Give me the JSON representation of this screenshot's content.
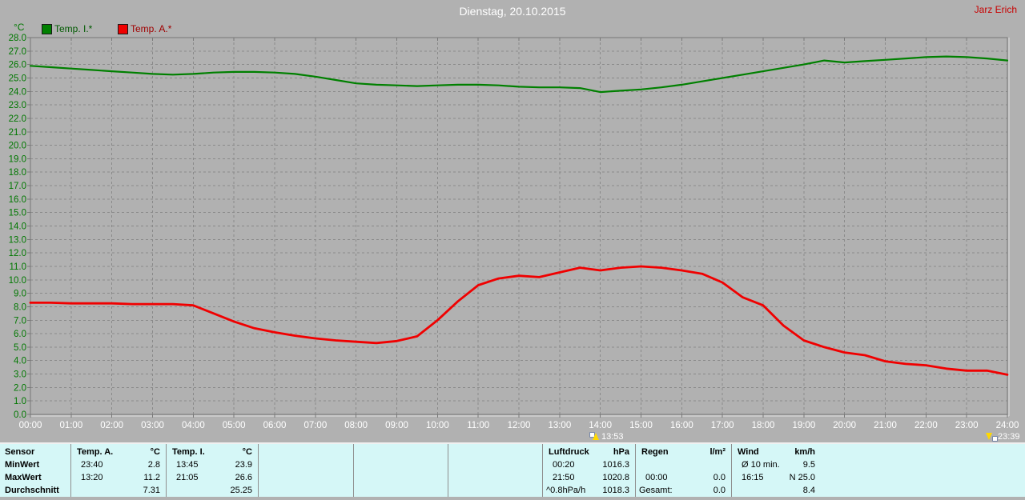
{
  "window": {
    "user": "Jarz Erich"
  },
  "chart_data": {
    "type": "line",
    "title": "Dienstag, 20.10.2015",
    "ylabel": "°C",
    "xlabel": "",
    "ylim": [
      0,
      28
    ],
    "ytick_step": 1,
    "xlim_hours": [
      0,
      24
    ],
    "grid": "dashed, hourly x 1.0°C",
    "legend_position": "top-left",
    "x_labels": [
      "00:00",
      "01:00",
      "02:00",
      "03:00",
      "04:00",
      "05:00",
      "06:00",
      "07:00",
      "08:00",
      "09:00",
      "10:00",
      "11:00",
      "12:00",
      "13:00",
      "14:00",
      "15:00",
      "16:00",
      "17:00",
      "18:00",
      "19:00",
      "20:00",
      "21:00",
      "22:00",
      "23:00",
      "24:00"
    ],
    "x_hours": [
      0,
      0.5,
      1,
      1.5,
      2,
      2.5,
      3,
      3.5,
      4,
      4.5,
      5,
      5.5,
      6,
      6.5,
      7,
      7.5,
      8,
      8.5,
      9,
      9.5,
      10,
      10.5,
      11,
      11.5,
      12,
      12.5,
      13,
      13.5,
      14,
      14.5,
      15,
      15.5,
      16,
      16.5,
      17,
      17.5,
      18,
      18.5,
      19,
      19.5,
      20,
      20.5,
      21,
      21.5,
      22,
      22.5,
      23,
      23.5,
      24
    ],
    "series": [
      {
        "name": "Temp. I.*",
        "color": "#008000",
        "values": [
          25.9,
          25.8,
          25.7,
          25.6,
          25.5,
          25.4,
          25.3,
          25.25,
          25.3,
          25.4,
          25.45,
          25.45,
          25.4,
          25.3,
          25.1,
          24.85,
          24.6,
          24.5,
          24.45,
          24.4,
          24.45,
          24.5,
          24.5,
          24.45,
          24.35,
          24.3,
          24.3,
          24.25,
          23.95,
          24.05,
          24.15,
          24.3,
          24.5,
          24.75,
          25.0,
          25.25,
          25.5,
          25.75,
          26.0,
          26.3,
          26.15,
          26.25,
          26.35,
          26.45,
          26.55,
          26.6,
          26.55,
          26.45,
          26.3
        ]
      },
      {
        "name": "Temp. A.*",
        "color": "#F00000",
        "values": [
          8.3,
          8.3,
          8.25,
          8.25,
          8.25,
          8.2,
          8.2,
          8.2,
          8.1,
          7.5,
          6.9,
          6.4,
          6.1,
          5.85,
          5.65,
          5.5,
          5.4,
          5.3,
          5.45,
          5.8,
          7.0,
          8.4,
          9.6,
          10.1,
          10.3,
          10.2,
          10.55,
          10.9,
          10.7,
          10.9,
          11.0,
          10.9,
          10.7,
          10.45,
          9.8,
          8.7,
          8.1,
          6.6,
          5.5,
          5.0,
          4.6,
          4.4,
          3.95,
          3.75,
          3.65,
          3.4,
          3.25,
          3.25,
          2.95
        ]
      }
    ],
    "time_markers": [
      {
        "label": "13:53",
        "hour": 13.883
      },
      {
        "label": "23:39",
        "hour": 23.65
      }
    ]
  },
  "stats": {
    "row_labels": [
      "Sensor",
      "MinWert",
      "MaxWert",
      "Durchschnitt"
    ],
    "temp_a": {
      "name": "Temp. A.",
      "unit": "°C",
      "rows": [
        [
          "23:40",
          "2.8"
        ],
        [
          "13:20",
          "11.2"
        ],
        [
          "",
          "7.31"
        ]
      ]
    },
    "temp_i": {
      "name": "Temp. I.",
      "unit": "°C",
      "rows": [
        [
          "13:45",
          "23.9"
        ],
        [
          "21:05",
          "26.6"
        ],
        [
          "",
          "25.25"
        ]
      ]
    },
    "luftdruck": {
      "name": "Luftdruck",
      "unit": "hPa",
      "rows": [
        [
          "00:20",
          "1016.3"
        ],
        [
          "21:50",
          "1020.8"
        ],
        [
          "^0.8hPa/h",
          "1018.3"
        ]
      ]
    },
    "regen": {
      "name": "Regen",
      "unit": "l/m²",
      "rows": [
        [
          "",
          ""
        ],
        [
          "00:00",
          "0.0"
        ],
        [
          "Gesamt:",
          "0.0"
        ]
      ]
    },
    "wind": {
      "name": "Wind",
      "unit": "km/h",
      "rows": [
        [
          "Ø 10 min.",
          "9.5"
        ],
        [
          "16:15",
          "N 25.0"
        ],
        [
          "",
          "8.4"
        ]
      ]
    }
  }
}
